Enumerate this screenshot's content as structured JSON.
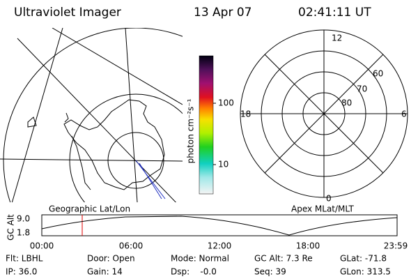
{
  "header": {
    "instrument": "Ultraviolet Imager",
    "date": "13 Apr 07",
    "time": "02:41:11 UT"
  },
  "colorbar": {
    "title": "photon cm⁻²s⁻¹",
    "ticks": [
      "100",
      "10"
    ]
  },
  "polar": {
    "mlt_labels": [
      "12",
      "18",
      "6",
      "0"
    ],
    "mlat_labels": [
      "60",
      "70",
      "80"
    ]
  },
  "panels": {
    "left_caption": "Geographic Lat/Lon",
    "right_caption": "Apex MLat/MLT"
  },
  "timeline": {
    "axis_title": "GC Alt",
    "y_labels": [
      "9.0",
      "1.8"
    ],
    "time_labels": [
      "00:00",
      "06:00",
      "12:00",
      "18:00",
      "23:59"
    ]
  },
  "status": {
    "rows": [
      [
        "Flt: LBHL",
        "Door: Open",
        "Mode: Normal",
        "GC Alt: 7.3 Re",
        "GLat: -71.8"
      ],
      [
        "IP: 36.0",
        "Gain: 14",
        "Dsp:    -0.0",
        "Seq: 39",
        "GLon: 313.5"
      ]
    ]
  }
}
